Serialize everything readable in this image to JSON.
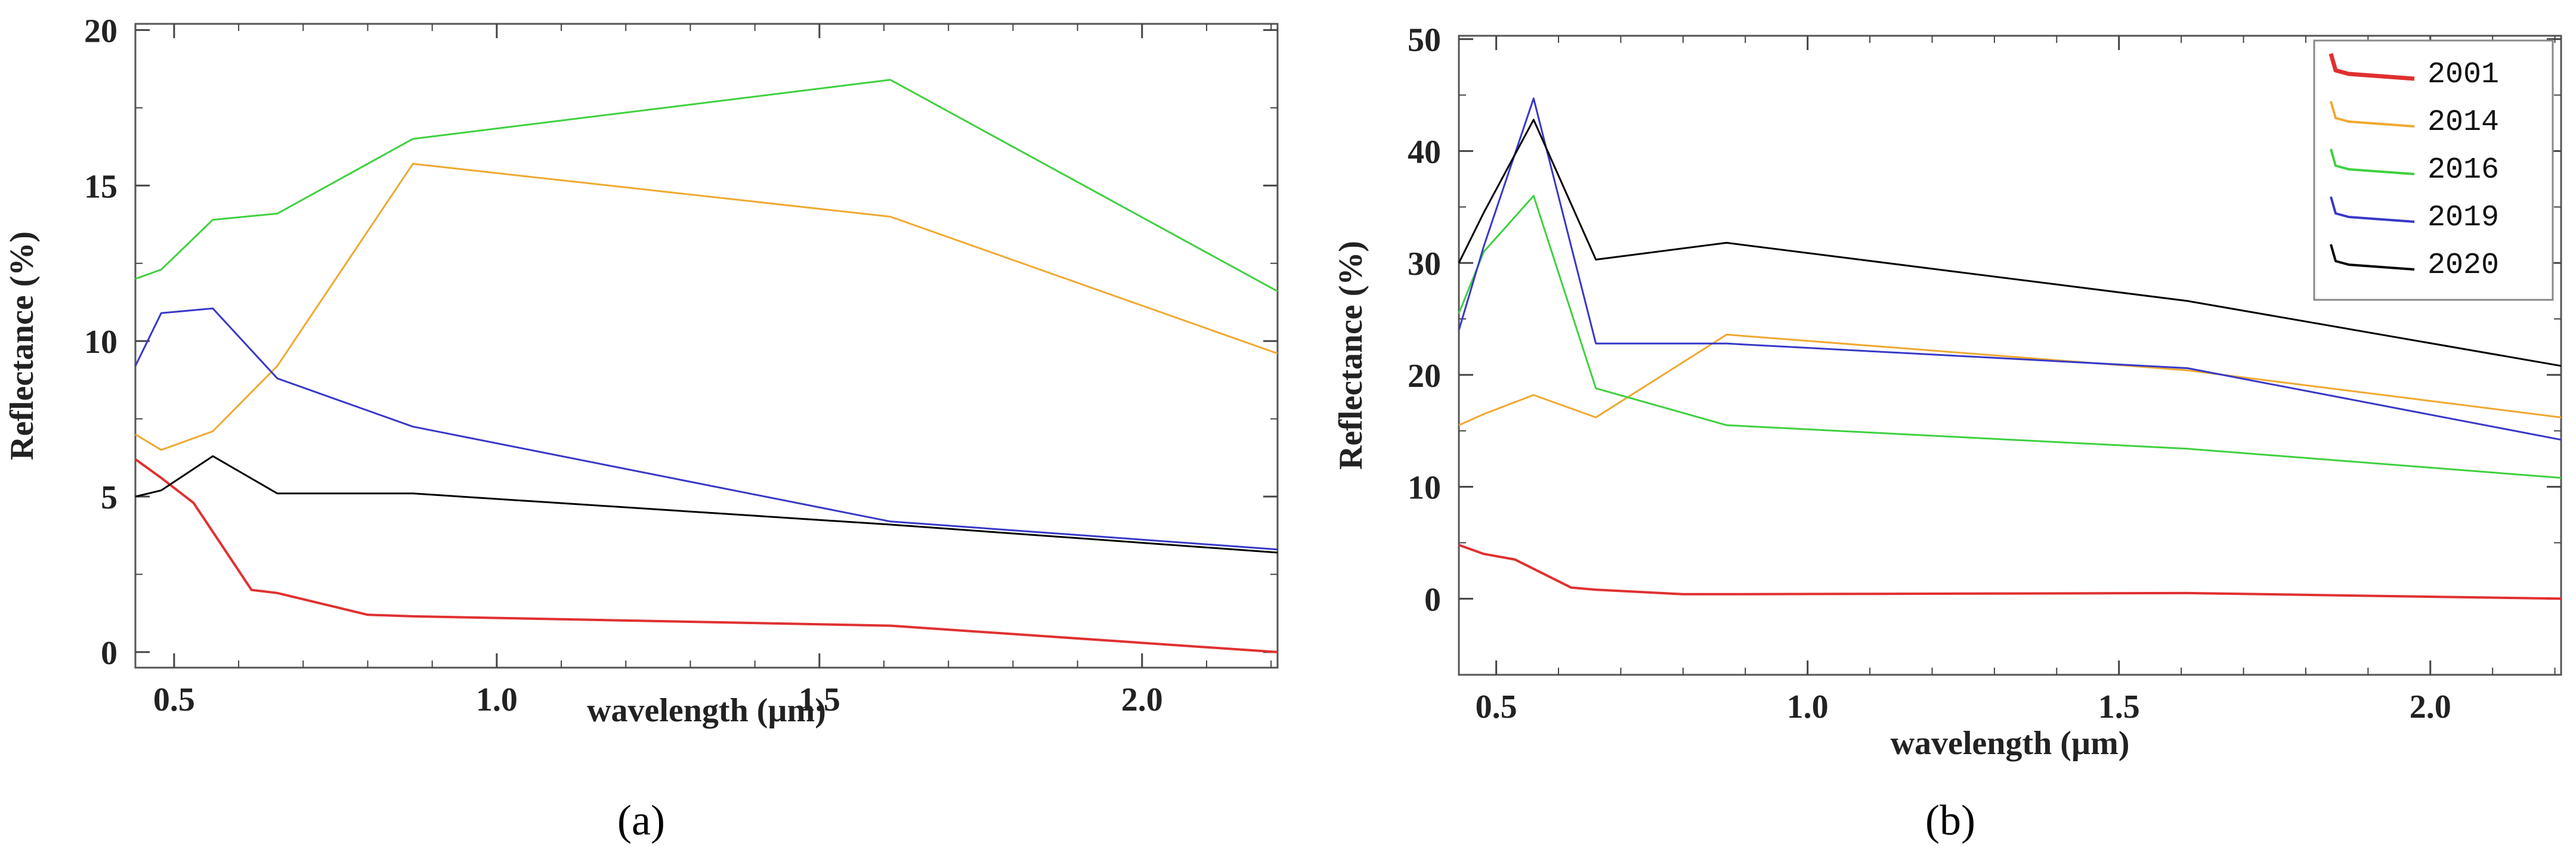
{
  "figure": {
    "panels": [
      {
        "caption_paren_open": "(",
        "caption_letter": "a",
        "caption_paren_close": ")"
      },
      {
        "caption_paren_open": "(",
        "caption_letter": "b",
        "caption_paren_close": ")"
      }
    ]
  },
  "chart_data": [
    {
      "type": "line",
      "title": "",
      "xlabel": "wavelength (µm)",
      "ylabel": "Reflectance (%)",
      "xlim": [
        0.44,
        2.21
      ],
      "ylim": [
        -0.5,
        20.2
      ],
      "xticks": [
        0.5,
        1.0,
        1.5,
        2.0
      ],
      "xtick_labels": [
        "0.5",
        "1.0",
        "1.5",
        "2.0"
      ],
      "yticks": [
        0,
        5,
        10,
        15,
        20
      ],
      "ytick_labels": [
        "0",
        "5",
        "10",
        "15",
        "20"
      ],
      "grid": false,
      "legend": false,
      "series": [
        {
          "color": "#e03030",
          "points": [
            [
              0.44,
              6.2
            ],
            [
              0.48,
              5.6
            ],
            [
              0.53,
              4.8
            ],
            [
              0.62,
              2.0
            ],
            [
              0.66,
              1.9
            ],
            [
              0.8,
              1.2
            ],
            [
              0.87,
              1.15
            ],
            [
              1.61,
              0.85
            ],
            [
              2.21,
              0.0
            ]
          ]
        },
        {
          "color": "#f0a830",
          "points": [
            [
              0.44,
              7.0
            ],
            [
              0.48,
              6.5
            ],
            [
              0.56,
              7.1
            ],
            [
              0.66,
              9.2
            ],
            [
              0.87,
              15.7
            ],
            [
              1.61,
              14.0
            ],
            [
              2.21,
              9.6
            ]
          ]
        },
        {
          "color": "#40d040",
          "points": [
            [
              0.44,
              12.0
            ],
            [
              0.48,
              12.3
            ],
            [
              0.56,
              13.9
            ],
            [
              0.66,
              14.1
            ],
            [
              0.87,
              16.5
            ],
            [
              1.61,
              18.4
            ],
            [
              2.21,
              11.6
            ]
          ]
        },
        {
          "color": "#3838c8",
          "points": [
            [
              0.44,
              9.2
            ],
            [
              0.48,
              10.9
            ],
            [
              0.56,
              11.05
            ],
            [
              0.66,
              8.8
            ],
            [
              0.87,
              7.25
            ],
            [
              1.61,
              4.2
            ],
            [
              2.21,
              3.3
            ]
          ]
        },
        {
          "color": "#000000",
          "points": [
            [
              0.44,
              5.0
            ],
            [
              0.48,
              5.2
            ],
            [
              0.56,
              6.3
            ],
            [
              0.66,
              5.1
            ],
            [
              0.87,
              5.1
            ],
            [
              1.61,
              4.1
            ],
            [
              2.21,
              3.2
            ]
          ]
        }
      ]
    },
    {
      "type": "line",
      "title": "",
      "xlabel": "wavelength (µm)",
      "ylabel": "Reflectance (%)",
      "xlim": [
        0.44,
        2.21
      ],
      "ylim": [
        -6.8,
        50.3
      ],
      "xticks": [
        0.5,
        1.0,
        1.5,
        2.0
      ],
      "xtick_labels": [
        "0.5",
        "1.0",
        "1.5",
        "2.0"
      ],
      "yticks": [
        0,
        10,
        20,
        30,
        40,
        50
      ],
      "ytick_labels": [
        "0",
        "10",
        "20",
        "30",
        "40",
        "50"
      ],
      "grid": false,
      "legend": true,
      "legend_position": "top-right",
      "series": [
        {
          "name": "2001",
          "color": "#e03030",
          "points": [
            [
              0.44,
              4.8
            ],
            [
              0.48,
              4.0
            ],
            [
              0.53,
              3.5
            ],
            [
              0.62,
              1.0
            ],
            [
              0.66,
              0.8
            ],
            [
              0.8,
              0.4
            ],
            [
              0.87,
              0.4
            ],
            [
              1.61,
              0.5
            ],
            [
              2.21,
              0.0
            ]
          ]
        },
        {
          "name": "2014",
          "color": "#f0a830",
          "points": [
            [
              0.44,
              15.5
            ],
            [
              0.48,
              16.5
            ],
            [
              0.56,
              18.2
            ],
            [
              0.66,
              16.2
            ],
            [
              0.87,
              23.6
            ],
            [
              1.61,
              20.4
            ],
            [
              2.21,
              16.2
            ]
          ]
        },
        {
          "name": "2016",
          "color": "#40d040",
          "points": [
            [
              0.44,
              25.5
            ],
            [
              0.48,
              31.0
            ],
            [
              0.56,
              36.0
            ],
            [
              0.66,
              18.8
            ],
            [
              0.87,
              15.5
            ],
            [
              1.61,
              13.4
            ],
            [
              2.21,
              10.8
            ]
          ]
        },
        {
          "name": "2019",
          "color": "#3838c8",
          "points": [
            [
              0.44,
              24.0
            ],
            [
              0.48,
              31.5
            ],
            [
              0.56,
              44.7
            ],
            [
              0.66,
              22.8
            ],
            [
              0.87,
              22.8
            ],
            [
              1.61,
              20.6
            ],
            [
              2.21,
              14.2
            ]
          ]
        },
        {
          "name": "2020",
          "color": "#000000",
          "points": [
            [
              0.44,
              30.0
            ],
            [
              0.48,
              34.5
            ],
            [
              0.56,
              42.8
            ],
            [
              0.66,
              30.3
            ],
            [
              0.87,
              31.8
            ],
            [
              1.61,
              26.6
            ],
            [
              2.21,
              20.8
            ]
          ]
        }
      ]
    }
  ]
}
